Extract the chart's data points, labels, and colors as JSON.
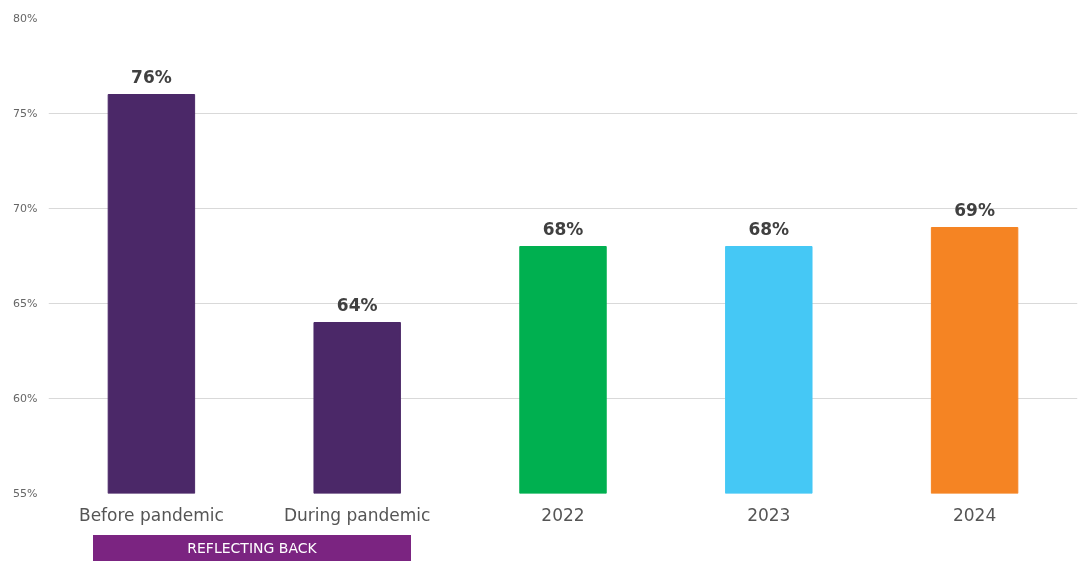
{
  "chart_data": {
    "type": "bar",
    "categories": [
      "Before pandemic",
      "During pandemic",
      "2022",
      "2023",
      "2024"
    ],
    "values": [
      76,
      64,
      68,
      68,
      69
    ],
    "colors": [
      "#4b2868",
      "#4b2868",
      "#00b050",
      "#45c8f5",
      "#f58423"
    ],
    "value_labels": [
      "76%",
      "64%",
      "68%",
      "68%",
      "69%"
    ],
    "ylim": [
      55,
      80
    ],
    "yticks": [
      {
        "value": 55,
        "label": "55%"
      },
      {
        "value": 60,
        "label": "60%"
      },
      {
        "value": 65,
        "label": "65%"
      },
      {
        "value": 70,
        "label": "70%"
      },
      {
        "value": 75,
        "label": "75%"
      },
      {
        "value": 80,
        "label": "80%"
      }
    ],
    "grid": "y",
    "annotations": [
      "REFLECTING BACK"
    ]
  }
}
